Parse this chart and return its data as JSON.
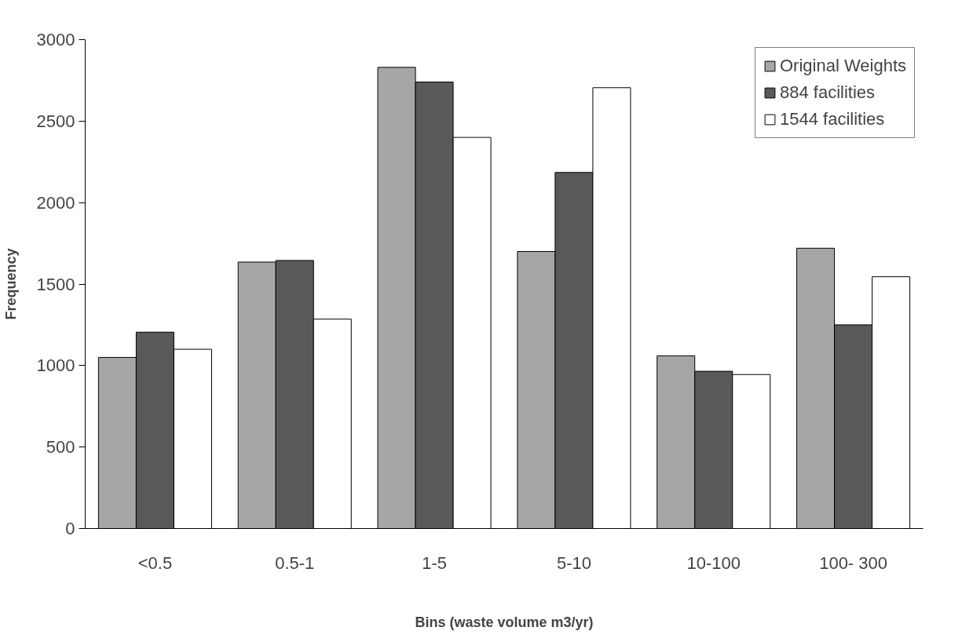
{
  "chart_data": {
    "type": "bar",
    "xlabel": "Bins (waste volume m3/yr)",
    "ylabel": "Frequency",
    "categories": [
      "<0.5",
      "0.5-1",
      "1-5",
      "5-10",
      "10-100",
      "100- 300"
    ],
    "series": [
      {
        "name": "Original Weights",
        "color": "#a6a6a6",
        "values": [
          1050,
          1635,
          2830,
          1700,
          1060,
          1720
        ]
      },
      {
        "name": "884 facilities",
        "color": "#595959",
        "values": [
          1205,
          1645,
          2740,
          2185,
          965,
          1250
        ]
      },
      {
        "name": "1544 facilities",
        "color": "#ffffff",
        "values": [
          1100,
          1285,
          2400,
          2705,
          945,
          1545
        ]
      }
    ],
    "ylim": [
      0,
      3000
    ],
    "yticks": [
      0,
      500,
      1000,
      1500,
      2000,
      2500,
      3000
    ],
    "grid": false,
    "legend": "top right"
  }
}
